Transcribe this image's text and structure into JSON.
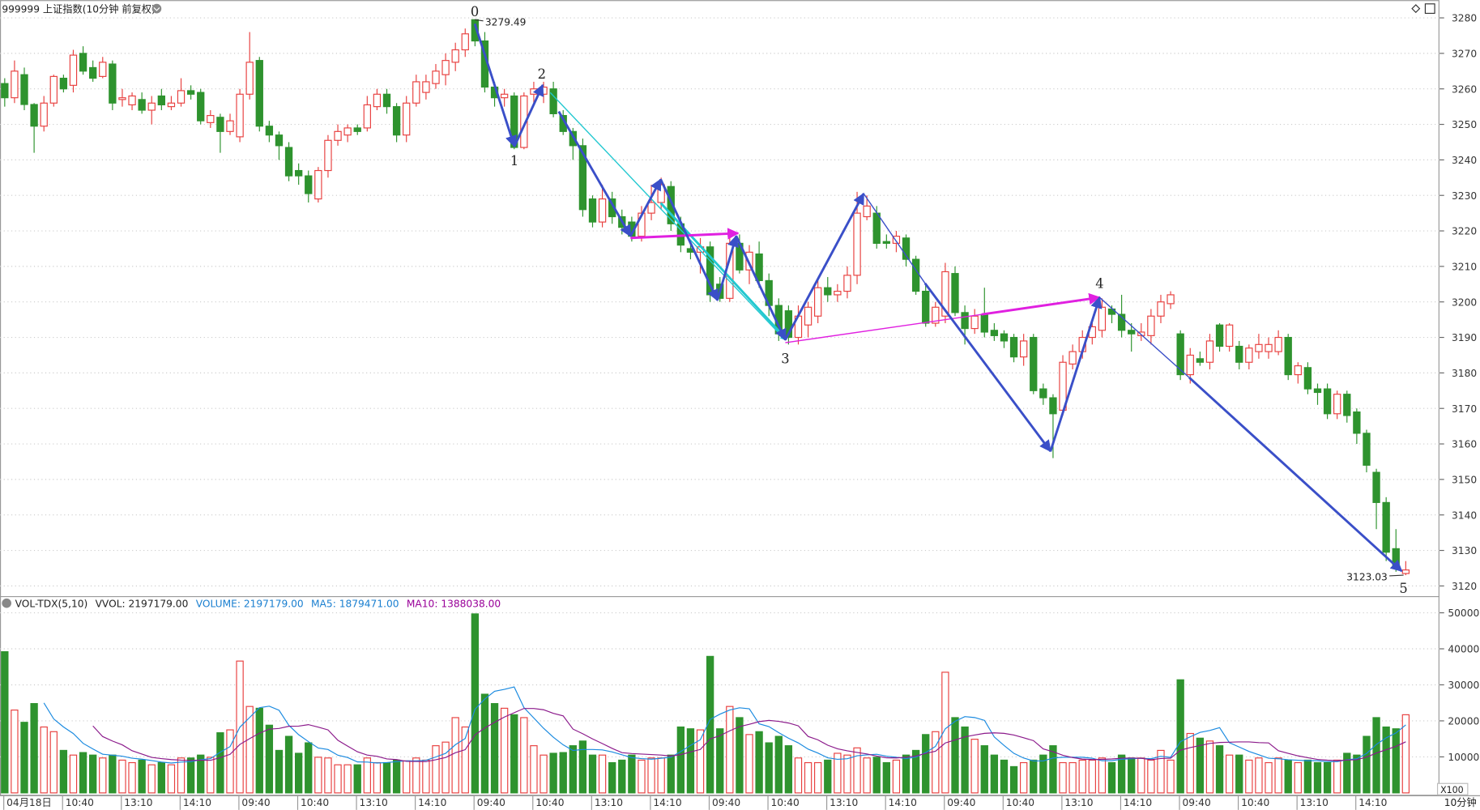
{
  "header": {
    "symbol": "999999 上证指数(10分钟 前复权)",
    "period": "10分钟",
    "unit": "X100"
  },
  "chart_data": [
    {
      "type": "candlestick",
      "categories": [
        "04月18日",
        null,
        null,
        null,
        null,
        null,
        "10:40",
        null,
        null,
        null,
        null,
        null,
        "13:10",
        null,
        null,
        null,
        null,
        null,
        "14:10",
        null,
        null,
        null,
        null,
        null,
        "09:40",
        null,
        null,
        null,
        null,
        null,
        "10:40",
        null,
        null,
        null,
        null,
        null,
        "13:10",
        null,
        null,
        null,
        null,
        null,
        "14:10",
        null,
        null,
        null,
        null,
        null,
        "09:40",
        null,
        null,
        null,
        null,
        null,
        "10:40",
        null,
        null,
        null,
        null,
        null,
        "13:10",
        null,
        null,
        null,
        null,
        null,
        "14:10",
        null,
        null,
        null,
        null,
        null,
        "09:40",
        null,
        null,
        null,
        null,
        null,
        "10:40",
        null,
        null,
        null,
        null,
        null,
        "13:10",
        null,
        null,
        null,
        null,
        null,
        "14:10",
        null,
        null,
        null,
        null,
        null,
        "09:40",
        null,
        null,
        null,
        null,
        null,
        "10:40",
        null,
        null,
        null,
        null,
        null,
        "13:10",
        null,
        null,
        null,
        null,
        null,
        "14:10",
        null,
        null,
        null,
        null,
        null,
        "09:40",
        null,
        null,
        null,
        null,
        null,
        "10:40",
        null,
        null,
        null,
        null,
        null,
        "13:10",
        null,
        null,
        null,
        null,
        null,
        "14:10",
        null,
        null,
        null,
        null,
        null
      ],
      "ohlc": [
        [
          3261.5,
          3263,
          3255,
          3257.5
        ],
        [
          3257.5,
          3268,
          3256,
          3265
        ],
        [
          3264,
          3266,
          3254,
          3255.6
        ],
        [
          3255.6,
          3256,
          3242,
          3249.5
        ],
        [
          3249.5,
          3258,
          3248,
          3256
        ],
        [
          3256,
          3264,
          3255,
          3263.5
        ],
        [
          3263,
          3264,
          3259,
          3260
        ],
        [
          3261,
          3271,
          3259,
          3269.5
        ],
        [
          3270,
          3272,
          3264,
          3265
        ],
        [
          3266,
          3268,
          3262,
          3263
        ],
        [
          3263.5,
          3269,
          3263,
          3267.5
        ],
        [
          3267,
          3268,
          3254,
          3256
        ],
        [
          3257,
          3260,
          3255,
          3257.5
        ],
        [
          3255.5,
          3259,
          3254,
          3258
        ],
        [
          3257,
          3259,
          3253,
          3254
        ],
        [
          3254,
          3258,
          3250,
          3256
        ],
        [
          3258,
          3260,
          3254,
          3255.5
        ],
        [
          3255,
          3258,
          3254,
          3256
        ],
        [
          3256,
          3263,
          3255,
          3259.5
        ],
        [
          3259.5,
          3261,
          3257,
          3258.5
        ],
        [
          3259,
          3260,
          3250,
          3251
        ],
        [
          3250.5,
          3254,
          3249,
          3252.5
        ],
        [
          3252,
          3253,
          3242,
          3248
        ],
        [
          3248,
          3253,
          3247,
          3251
        ],
        [
          3246.5,
          3260,
          3245,
          3258.5
        ],
        [
          3258.5,
          3276,
          3257,
          3267.5
        ],
        [
          3268,
          3269,
          3248,
          3249.5
        ],
        [
          3249.5,
          3251,
          3245,
          3247
        ],
        [
          3247,
          3248,
          3240,
          3244
        ],
        [
          3243.5,
          3245,
          3234,
          3235.5
        ],
        [
          3237,
          3239,
          3233,
          3235.5
        ],
        [
          3235.5,
          3237,
          3228,
          3230.5
        ],
        [
          3229,
          3238,
          3228,
          3237
        ],
        [
          3237,
          3247,
          3235,
          3245.5
        ],
        [
          3245.5,
          3250,
          3244,
          3248
        ],
        [
          3247,
          3250,
          3245,
          3249
        ],
        [
          3249,
          3250,
          3247,
          3248
        ],
        [
          3249,
          3258,
          3248,
          3255.5
        ],
        [
          3255,
          3260,
          3254,
          3258.5
        ],
        [
          3258.5,
          3260,
          3253,
          3255
        ],
        [
          3255,
          3256,
          3245,
          3247
        ],
        [
          3247,
          3258,
          3245,
          3256
        ],
        [
          3256,
          3264,
          3255,
          3262
        ],
        [
          3259,
          3264,
          3257,
          3262
        ],
        [
          3261.5,
          3267,
          3260,
          3265
        ],
        [
          3264,
          3270,
          3261,
          3268
        ],
        [
          3267.5,
          3273,
          3265,
          3271
        ],
        [
          3271,
          3277,
          3269,
          3275.5
        ],
        [
          3279.49,
          3279.49,
          3272,
          3273.5
        ],
        [
          3273.5,
          3276,
          3259,
          3260.5
        ],
        [
          3260.5,
          3262,
          3255,
          3257.5
        ],
        [
          3257.5,
          3260,
          3255,
          3258.5
        ],
        [
          3258,
          3259,
          3243,
          3243.5
        ],
        [
          3243.5,
          3259,
          3243,
          3258
        ],
        [
          3258.5,
          3262,
          3256,
          3260
        ],
        [
          3258.5,
          3262,
          3256,
          3260.5
        ],
        [
          3260,
          3262,
          3252,
          3253
        ],
        [
          3252.5,
          3254,
          3247,
          3248
        ],
        [
          3248,
          3249,
          3240,
          3244
        ],
        [
          3244,
          3246,
          3224,
          3226
        ],
        [
          3229,
          3230,
          3221,
          3222.5
        ],
        [
          3222.5,
          3233,
          3221,
          3229
        ],
        [
          3229,
          3231,
          3222,
          3224
        ],
        [
          3224,
          3226,
          3219,
          3221
        ],
        [
          3222.5,
          3224,
          3217,
          3218.5
        ],
        [
          3218.5,
          3227,
          3217,
          3225
        ],
        [
          3225,
          3233,
          3223,
          3228
        ],
        [
          3228,
          3235,
          3226,
          3233
        ],
        [
          3232.5,
          3234,
          3220,
          3222
        ],
        [
          3222,
          3224,
          3214,
          3216
        ],
        [
          3215,
          3217,
          3212,
          3214
        ],
        [
          3214,
          3218,
          3208,
          3215.5
        ],
        [
          3215.5,
          3217,
          3200,
          3202
        ],
        [
          3205,
          3207,
          3200,
          3201
        ],
        [
          3201,
          3218,
          3200,
          3216.5
        ],
        [
          3216.5,
          3219,
          3208,
          3209
        ],
        [
          3209,
          3216,
          3205,
          3214
        ],
        [
          3213.5,
          3217,
          3204,
          3206
        ],
        [
          3206,
          3208,
          3196,
          3199
        ],
        [
          3199,
          3201,
          3189,
          3191
        ],
        [
          3197.5,
          3199,
          3188,
          3190
        ],
        [
          3190,
          3199,
          3188,
          3196
        ],
        [
          3193.5,
          3200,
          3190,
          3198.5
        ],
        [
          3196,
          3206,
          3194,
          3204
        ],
        [
          3204,
          3207,
          3200,
          3202
        ],
        [
          3202,
          3205,
          3200,
          3203
        ],
        [
          3203,
          3210,
          3201,
          3207.5
        ],
        [
          3207.5,
          3231,
          3205,
          3225
        ],
        [
          3224,
          3230,
          3223,
          3227
        ],
        [
          3225,
          3227,
          3215,
          3216.5
        ],
        [
          3217,
          3219,
          3215,
          3216.5
        ],
        [
          3216.5,
          3220,
          3214,
          3218.5
        ],
        [
          3218,
          3219,
          3210,
          3212
        ],
        [
          3212,
          3213,
          3202,
          3203
        ],
        [
          3203,
          3205,
          3193,
          3194
        ],
        [
          3194,
          3200,
          3193,
          3198.5
        ],
        [
          3196,
          3211,
          3194,
          3208.5
        ],
        [
          3208,
          3210,
          3196,
          3197
        ],
        [
          3197,
          3199,
          3188,
          3192.5
        ],
        [
          3192.5,
          3198,
          3191,
          3196
        ],
        [
          3196.5,
          3204,
          3190,
          3191.5
        ],
        [
          3192,
          3194,
          3189,
          3190.5
        ],
        [
          3191,
          3192,
          3187,
          3189
        ],
        [
          3190,
          3191,
          3183,
          3184.5
        ],
        [
          3184.5,
          3191,
          3182,
          3189
        ],
        [
          3190,
          3191,
          3174,
          3175
        ],
        [
          3175.5,
          3177,
          3171,
          3173
        ],
        [
          3173,
          3174,
          3156,
          3168.5
        ],
        [
          3169.5,
          3185,
          3168,
          3183
        ],
        [
          3182.5,
          3188,
          3181,
          3186
        ],
        [
          3186,
          3192,
          3184,
          3190
        ],
        [
          3190,
          3195,
          3188,
          3193
        ],
        [
          3192,
          3201,
          3190,
          3198.5
        ],
        [
          3198,
          3199,
          3194,
          3196.5
        ],
        [
          3196.5,
          3202,
          3190,
          3192
        ],
        [
          3192,
          3194,
          3186,
          3191
        ],
        [
          3190.5,
          3194,
          3189,
          3191.5
        ],
        [
          3190.5,
          3198,
          3188,
          3196
        ],
        [
          3196,
          3202,
          3194,
          3200
        ],
        [
          3199.5,
          3203,
          3198,
          3202
        ],
        [
          3191,
          3192,
          3178,
          3179.5
        ],
        [
          3179.5,
          3187,
          3177,
          3185
        ],
        [
          3184,
          3186,
          3182,
          3183
        ],
        [
          3183,
          3191,
          3181,
          3189
        ],
        [
          3193.5,
          3194,
          3186,
          3187.5
        ],
        [
          3187.5,
          3194,
          3186,
          3193.5
        ],
        [
          3187.5,
          3189,
          3181,
          3183
        ],
        [
          3183,
          3188,
          3181,
          3187
        ],
        [
          3186,
          3191,
          3184,
          3188
        ],
        [
          3186,
          3190,
          3184,
          3188
        ],
        [
          3186,
          3192,
          3185,
          3190
        ],
        [
          3190,
          3191,
          3178,
          3179.5
        ],
        [
          3179.5,
          3183,
          3177,
          3182
        ],
        [
          3181.5,
          3183,
          3174,
          3175.5
        ],
        [
          3175.5,
          3177,
          3171,
          3174.5
        ],
        [
          3175.5,
          3177,
          3167,
          3168.5
        ],
        [
          3168.5,
          3175,
          3167,
          3174
        ],
        [
          3174,
          3175,
          3166,
          3168
        ],
        [
          3169,
          3170,
          3160,
          3163
        ],
        [
          3163,
          3164,
          3152,
          3154
        ],
        [
          3152,
          3153,
          3136,
          3143.5
        ],
        [
          3143.5,
          3145,
          3127,
          3129.5
        ],
        [
          3130.5,
          3136,
          3124,
          3125.5
        ],
        [
          3123.5,
          3127,
          3123.03,
          3124.5
        ]
      ],
      "up_color": "#e8403f",
      "down_color": "#2e932e",
      "ylim": [
        3117,
        3285
      ],
      "yticks": [
        3120,
        3130,
        3140,
        3150,
        3160,
        3170,
        3180,
        3190,
        3200,
        3210,
        3220,
        3230,
        3240,
        3250,
        3260,
        3270,
        3280
      ],
      "grid": true,
      "price_labels": [
        {
          "value": 3279.49
        },
        {
          "value": 3123.03
        }
      ],
      "wave_labels": [
        "0",
        "1",
        "2",
        "3",
        "4",
        "5"
      ]
    },
    {
      "type": "bar",
      "indicator": "VOL-TDX(5,10)",
      "readouts": [
        {
          "text": "VVOL: 2197179.00",
          "color": "#222222"
        },
        {
          "text": "VOLUME: 2197179.00",
          "color": "#1a7fd0"
        },
        {
          "text": "MA5: 1879471.00",
          "color": "#1a7fd0"
        },
        {
          "text": "MA10: 1388038.00",
          "color": "#990099"
        }
      ],
      "ma_periods": [
        5,
        10
      ],
      "ma_colors": [
        "#1a8ae0",
        "#8b1a8b"
      ],
      "values": [
        39200,
        23000,
        19600,
        24800,
        18300,
        17000,
        11800,
        10500,
        11200,
        10500,
        9700,
        10500,
        9100,
        8400,
        9100,
        7800,
        8400,
        7800,
        9700,
        9700,
        10500,
        9900,
        16700,
        17500,
        36600,
        24000,
        23500,
        18800,
        11800,
        15700,
        11000,
        13900,
        9900,
        9700,
        7800,
        7800,
        7800,
        9700,
        8400,
        8400,
        9100,
        8900,
        9700,
        9100,
        13100,
        14100,
        20900,
        18300,
        49700,
        27400,
        24800,
        23500,
        21700,
        20900,
        13100,
        10500,
        11000,
        11200,
        13100,
        14400,
        10500,
        10500,
        8400,
        9100,
        10500,
        9100,
        9700,
        9700,
        10500,
        18300,
        17800,
        17500,
        37900,
        17800,
        24000,
        20900,
        16200,
        17000,
        13900,
        15700,
        13100,
        9700,
        8400,
        8400,
        9100,
        11000,
        10500,
        12500,
        9700,
        9900,
        8400,
        9100,
        10500,
        11800,
        16200,
        17000,
        33500,
        20900,
        18300,
        14900,
        13100,
        10500,
        9100,
        7300,
        8400,
        9100,
        10500,
        13100,
        8400,
        8400,
        9100,
        9100,
        9700,
        8400,
        10500,
        9700,
        9700,
        9100,
        11800,
        9100,
        31400,
        16500,
        15200,
        14400,
        13100,
        10500,
        10500,
        9100,
        9700,
        8400,
        9700,
        9100,
        8400,
        9100,
        8400,
        8400,
        9100,
        11000,
        10500,
        15700,
        20900,
        18300,
        17800,
        21700
      ],
      "ylim": [
        0,
        54500
      ],
      "yticks": [
        10000,
        20000,
        30000,
        40000,
        50000
      ]
    }
  ]
}
